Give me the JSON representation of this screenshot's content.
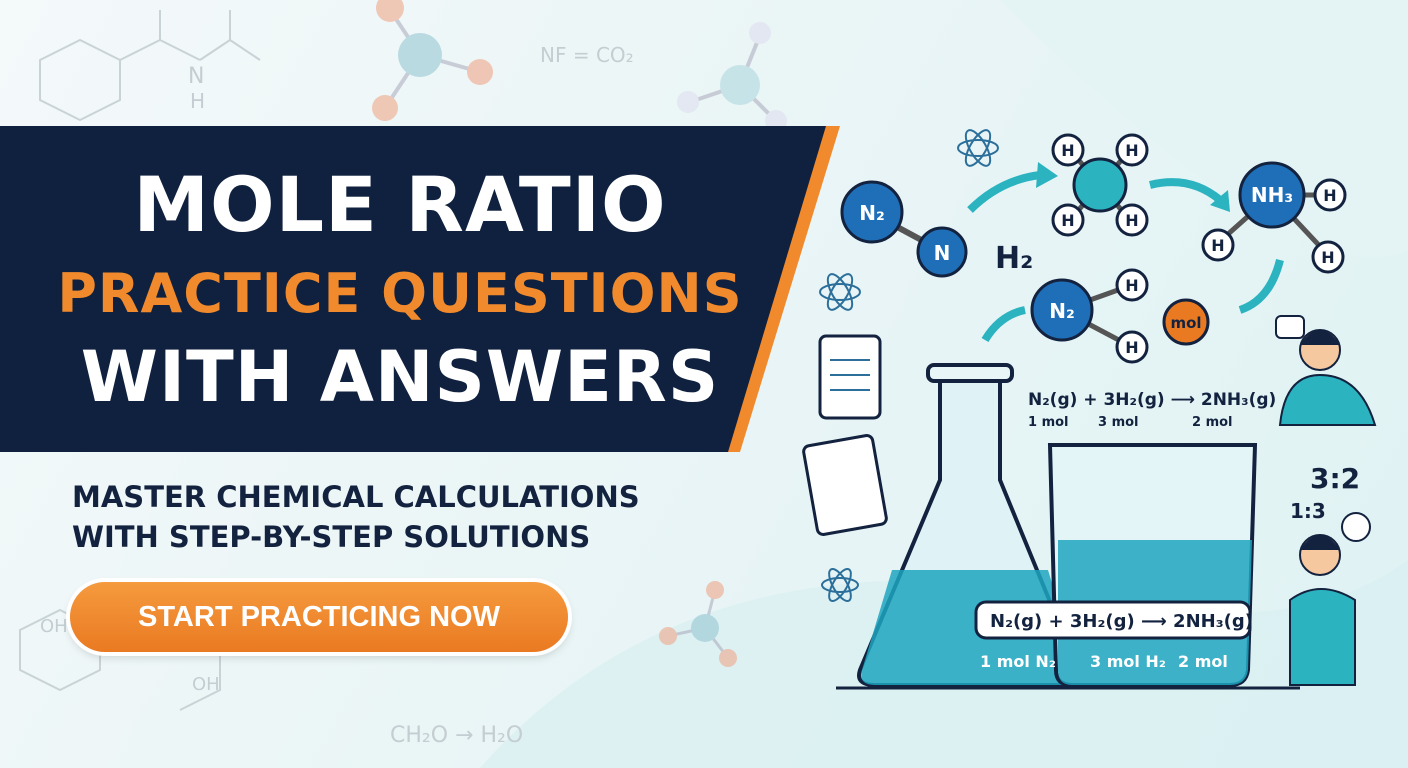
{
  "header": {
    "line1": "MOLE RATIO",
    "line2": "PRACTICE QUESTIONS",
    "line3": "WITH ANSWERS"
  },
  "subtitle": {
    "line1": "MASTER CHEMICAL CALCULATIONS",
    "line2": "WITH STEP-BY-STEP SOLUTIONS"
  },
  "cta": {
    "label": "START PRACTICING NOW"
  },
  "background": {
    "formula_top": "NF = CO₂",
    "formula_bottom": "CH₂O → H₂O",
    "nh_label": "N",
    "h_label": "H",
    "oh_label": "OH"
  },
  "illustration": {
    "n2": "N₂",
    "n": "N",
    "h2": "H₂",
    "h": "H",
    "nh3": "NH₃",
    "mol": "mol",
    "equation_top": "N₂(g) + 3H₂(g) ⟶ 2NH₃(g)",
    "eq_top_labels": [
      "1 mol",
      "3 mol",
      "2 mol"
    ],
    "equation_bottom": "N₂(g) + 3H₂(g) ⟶ 2NH₃(g)",
    "eq_bottom_labels": [
      "1 mol N₂",
      "3 mol H₂",
      "2 mol"
    ],
    "ratio1": "3:2",
    "ratio2": "1:3"
  },
  "colors": {
    "navy": "#10213f",
    "orange": "#f08a2c",
    "teal": "#2bb3c0",
    "blue": "#1f6fb8"
  }
}
